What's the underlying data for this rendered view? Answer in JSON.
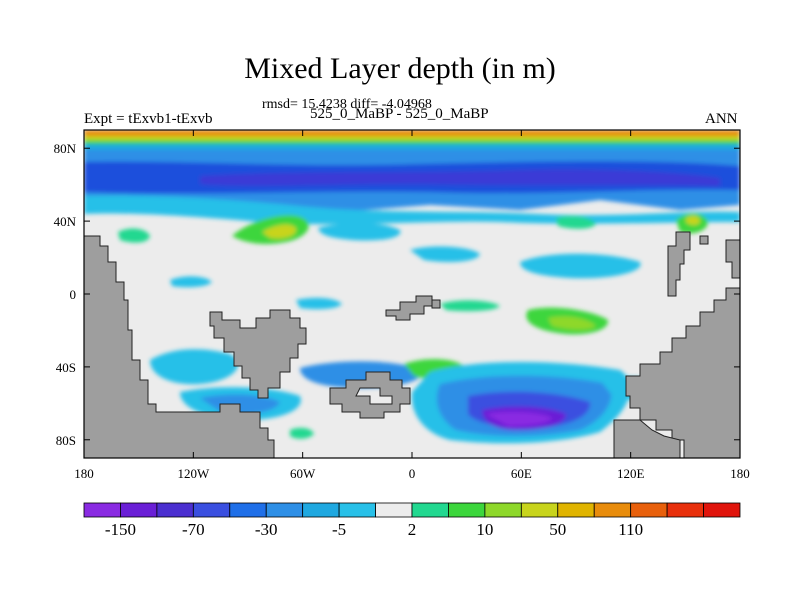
{
  "chart_data": {
    "type": "heatmap",
    "title": "Mixed Layer depth (in m)",
    "stats_line": "rmsd= 15.4238 diff= -4.04968",
    "subtitle": "525_0_MaBP - 525_0_MaBP",
    "experiment_label": "Expt = tExvb1-tExvb",
    "season_label": "ANN",
    "x_axis": {
      "range": [
        -180,
        180
      ],
      "tick_values": [
        -180,
        -120,
        -60,
        0,
        60,
        120,
        180
      ],
      "tick_labels": [
        "180",
        "120W",
        "60W",
        "0",
        "60E",
        "120E",
        "180"
      ]
    },
    "y_axis": {
      "range": [
        -90,
        90
      ],
      "tick_values": [
        80,
        40,
        0,
        -40,
        -80
      ],
      "tick_labels": [
        "80N",
        "40N",
        "0",
        "40S",
        "80S"
      ]
    },
    "colorbar": {
      "colors": [
        "#8a2be2",
        "#6a1fd6",
        "#4b2fd0",
        "#3a4fe0",
        "#1f6fe8",
        "#2e8fe6",
        "#1fa8e0",
        "#28c0e8",
        "#ececec",
        "#22d890",
        "#3cd63c",
        "#8ed82a",
        "#c8d41c",
        "#e0b400",
        "#e88c0c",
        "#e8600c",
        "#e8300c",
        "#e0140c"
      ],
      "labels": [
        "-150",
        "-70",
        "-30",
        "-5",
        "2",
        "10",
        "50",
        "110"
      ]
    },
    "colors": {
      "land": "#9e9e9e",
      "neutral": "#ececec"
    }
  }
}
